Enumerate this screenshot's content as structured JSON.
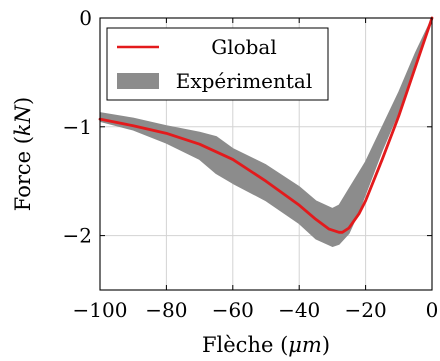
{
  "chart_data": {
    "type": "area",
    "title": "",
    "xlabel": {
      "prefix": "Flèche (",
      "unit": "μm",
      "suffix": ")"
    },
    "ylabel": {
      "prefix": "Force (",
      "unit": "kN",
      "suffix": ")"
    },
    "xlim": [
      -100,
      0
    ],
    "ylim": [
      -2.5,
      0
    ],
    "xticks": [
      -100,
      -80,
      -60,
      -40,
      -20,
      0
    ],
    "xtick_labels": [
      "−100",
      "−80",
      "−60",
      "−40",
      "−20",
      "0"
    ],
    "yticks": [
      -2,
      -1,
      0
    ],
    "ytick_labels": [
      "−2",
      "−1",
      "0"
    ],
    "grid": true,
    "legend_position": "top-right",
    "series": [
      {
        "name": "Global",
        "kind": "line",
        "color": "#e31a1c",
        "x": [
          -100,
          -90,
          -80,
          -70,
          -60,
          -50,
          -40,
          -35,
          -31,
          -28,
          -27,
          -25,
          -22,
          -20,
          -15,
          -10,
          -5,
          0
        ],
        "y": [
          -0.93,
          -0.99,
          -1.06,
          -1.16,
          -1.3,
          -1.5,
          -1.72,
          -1.85,
          -1.94,
          -1.97,
          -1.97,
          -1.93,
          -1.8,
          -1.68,
          -1.3,
          -0.9,
          -0.45,
          0.0
        ]
      },
      {
        "name": "Expérimental",
        "kind": "band",
        "color": "#8c8c8c",
        "x": [
          -100,
          -90,
          -80,
          -70,
          -65,
          -60,
          -50,
          -40,
          -35,
          -30,
          -28,
          -25,
          -22,
          -20,
          -15,
          -10,
          -5,
          0
        ],
        "upper": [
          -0.87,
          -0.92,
          -0.99,
          -1.05,
          -1.09,
          -1.2,
          -1.35,
          -1.55,
          -1.68,
          -1.75,
          -1.72,
          -1.57,
          -1.42,
          -1.32,
          -1.0,
          -0.68,
          -0.32,
          0.0
        ],
        "lower": [
          -0.95,
          -1.03,
          -1.15,
          -1.3,
          -1.43,
          -1.52,
          -1.68,
          -1.89,
          -2.03,
          -2.1,
          -2.08,
          -1.98,
          -1.78,
          -1.62,
          -1.22,
          -0.86,
          -0.45,
          -0.02
        ]
      }
    ]
  }
}
